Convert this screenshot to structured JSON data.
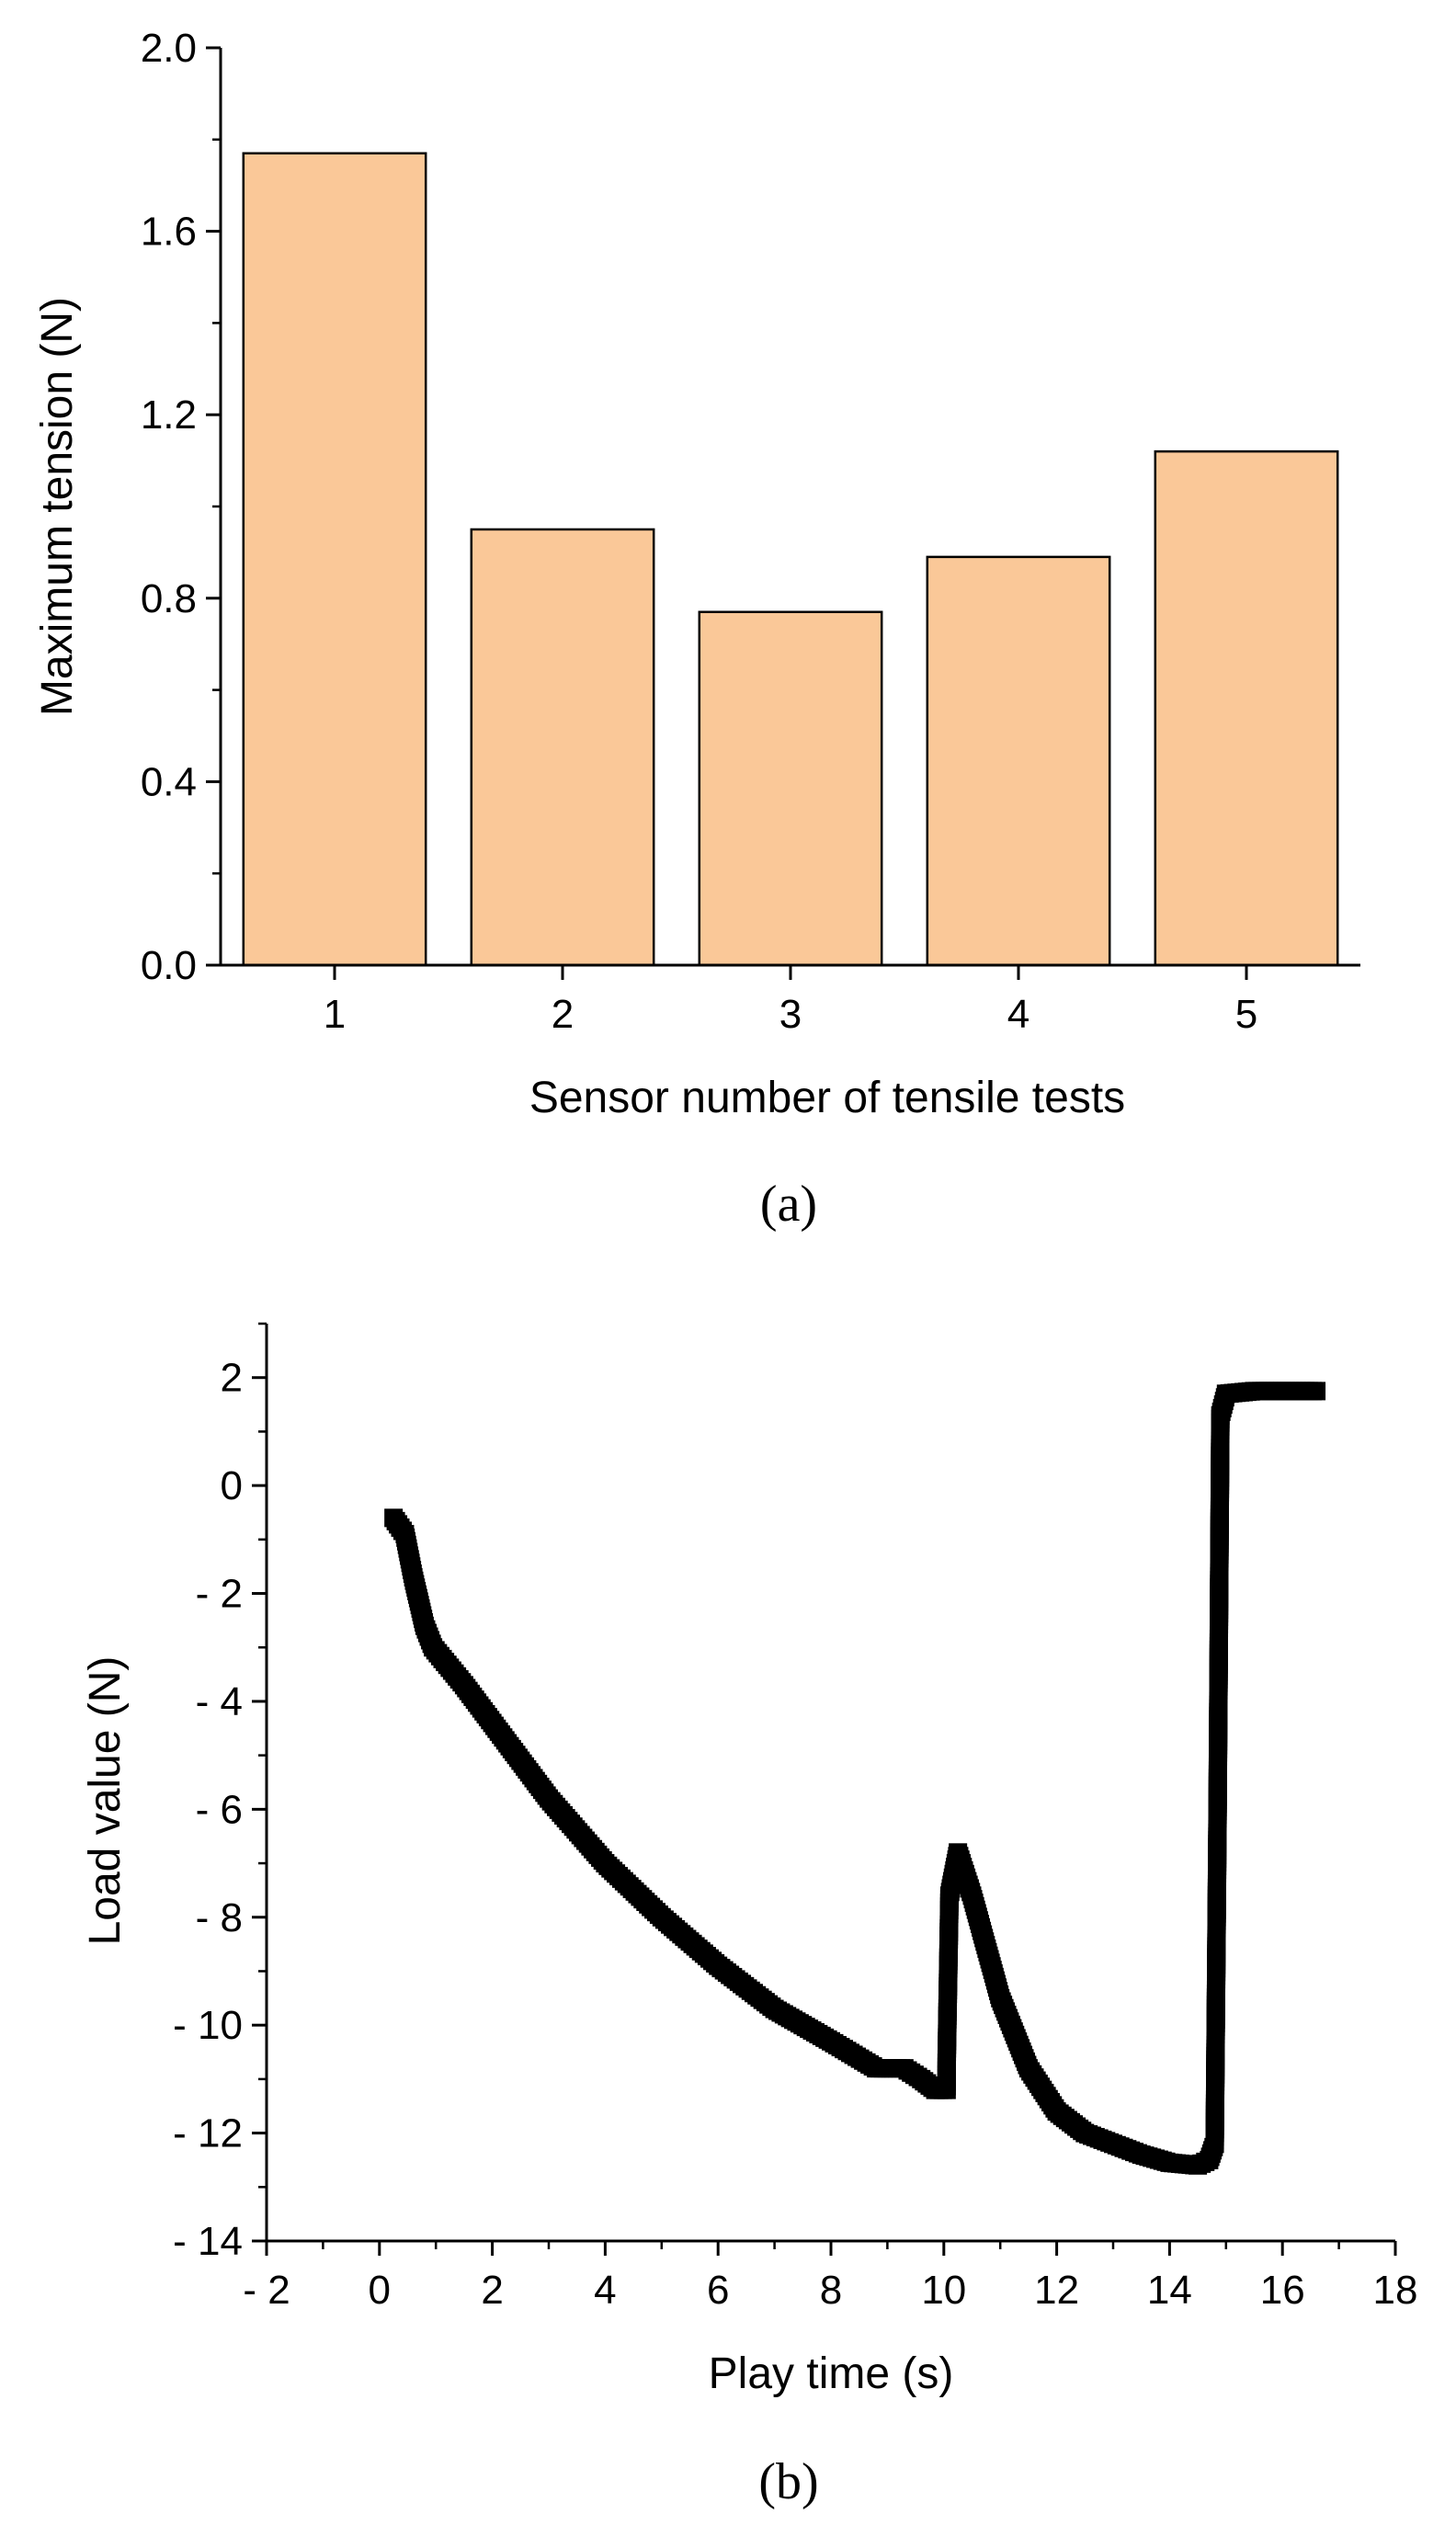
{
  "chart_data": [
    {
      "type": "bar",
      "caption": "(a)",
      "categories": [
        "1",
        "2",
        "3",
        "4",
        "5"
      ],
      "values": [
        1.77,
        0.95,
        0.77,
        0.89,
        1.12
      ],
      "xlabel": "Sensor number of tensile tests",
      "ylabel": "Maximum tension (N)",
      "ylim": [
        0,
        2.0
      ],
      "yticks": [
        0.0,
        0.4,
        0.8,
        1.2,
        1.6,
        2.0
      ],
      "ytick_labels": [
        "0.0",
        "0.4",
        "0.8",
        "1.2",
        "1.6",
        "2.0"
      ],
      "bar_color": "#FAC898",
      "edge_color": "#000000"
    },
    {
      "type": "scatter",
      "caption": "(b)",
      "xlabel": "Play time (s)",
      "ylabel": "Load value (N)",
      "xlim": [
        -2,
        18
      ],
      "ylim": [
        -14,
        3
      ],
      "xticks": [
        -2,
        0,
        2,
        4,
        6,
        8,
        10,
        12,
        14,
        16,
        18
      ],
      "xtick_labels": [
        "- 2",
        "0",
        "2",
        "4",
        "6",
        "8",
        "10",
        "12",
        "14",
        "16",
        "18"
      ],
      "yticks": [
        -14,
        -12,
        -10,
        -8,
        -6,
        -4,
        -2,
        0,
        2
      ],
      "ytick_labels": [
        "- 14",
        "- 12",
        "- 10",
        "- 8",
        "- 6",
        "- 4",
        "- 2",
        "0",
        "2"
      ],
      "marker": "square",
      "color": "#000000",
      "key_points": [
        [
          0.25,
          -0.6
        ],
        [
          0.45,
          -0.9
        ],
        [
          0.6,
          -1.7
        ],
        [
          0.8,
          -2.6
        ],
        [
          0.95,
          -3.0
        ],
        [
          1.5,
          -3.7
        ],
        [
          2.0,
          -4.4
        ],
        [
          3.0,
          -5.8
        ],
        [
          4.0,
          -7.0
        ],
        [
          5.0,
          -8.0
        ],
        [
          6.0,
          -8.9
        ],
        [
          7.0,
          -9.7
        ],
        [
          8.0,
          -10.3
        ],
        [
          8.8,
          -10.8
        ],
        [
          9.3,
          -10.8
        ],
        [
          9.6,
          -11.0
        ],
        [
          9.85,
          -11.2
        ],
        [
          10.05,
          -11.2
        ],
        [
          10.05,
          -10.7
        ],
        [
          10.1,
          -7.6
        ],
        [
          10.25,
          -6.8
        ],
        [
          10.5,
          -7.6
        ],
        [
          11.0,
          -9.5
        ],
        [
          11.5,
          -10.8
        ],
        [
          12.0,
          -11.6
        ],
        [
          12.5,
          -12.0
        ],
        [
          13.0,
          -12.2
        ],
        [
          13.5,
          -12.4
        ],
        [
          14.0,
          -12.55
        ],
        [
          14.5,
          -12.6
        ],
        [
          14.7,
          -12.5
        ],
        [
          14.8,
          -12.2
        ],
        [
          14.85,
          -6.1
        ],
        [
          14.9,
          1.3
        ],
        [
          15.0,
          1.7
        ],
        [
          15.5,
          1.75
        ],
        [
          16.0,
          1.75
        ],
        [
          16.6,
          1.75
        ]
      ]
    }
  ]
}
